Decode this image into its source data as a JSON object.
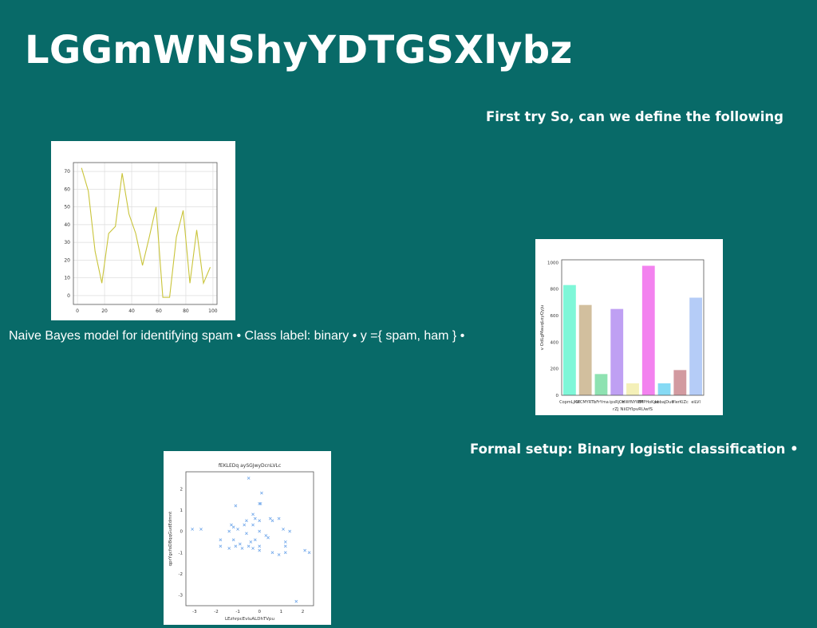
{
  "slide": {
    "title": "LGGmWNShyYDTGSXlybz",
    "caption_top": "First try So, can we define the following",
    "caption_bottom": "Formal setup: Binary logistic classification •",
    "body_text": "Naive Bayes model for identifying spam • Class label: binary • y ={ spam, ham } •"
  },
  "chart_data": [
    {
      "type": "line",
      "title": "",
      "xlabel": "",
      "ylabel": "",
      "x": [
        3,
        8,
        13,
        18,
        23,
        28,
        33,
        38,
        43,
        48,
        53,
        58,
        63,
        68,
        73,
        78,
        83,
        88,
        93,
        98
      ],
      "series": [
        {
          "values": [
            72,
            59,
            25,
            7,
            35,
            39,
            69,
            46,
            35,
            17,
            33,
            50,
            -1,
            -1,
            33,
            48,
            7,
            37,
            7,
            16
          ]
        }
      ],
      "xlim": [
        -3,
        103
      ],
      "ylim": [
        -5,
        75
      ],
      "xticks": [
        0,
        20,
        40,
        60,
        80,
        100
      ],
      "yticks": [
        0,
        10,
        20,
        30,
        40,
        50,
        60,
        70
      ],
      "grid": true,
      "colors": [
        "#c9c43a"
      ]
    },
    {
      "type": "bar",
      "title": "",
      "xlabel": "rZj NiiDYIpvRUwfS",
      "ylabel": "v OdLgMauqLoyQyju",
      "categories": [
        "CopmLjKX",
        "WCMYRTI",
        "bFrYma",
        "ipsRjOs",
        "HWfNYWM",
        "BPPHoKpe",
        "kbbajDud",
        "VlerKiZc",
        "eiLVl"
      ],
      "values": [
        830,
        680,
        160,
        650,
        90,
        975,
        90,
        190,
        735
      ],
      "ylim": [
        0,
        1020
      ],
      "yticks": [
        0,
        200,
        400,
        600,
        800,
        1000
      ],
      "grid": false,
      "colors": [
        "#7ef7d8",
        "#d2bf9e",
        "#8ee2b1",
        "#bfa0f3",
        "#f4f0b8",
        "#f382ef",
        "#86daf4",
        "#d29aa0",
        "#b5ccf7"
      ]
    },
    {
      "type": "scatter",
      "title": "fEKLEDq aySGJwyDcnLVLc",
      "xlabel": "LEzhrpcEvluALDhTVpu",
      "ylabel": "qprYgcfoDBqqGudEdmnt",
      "xlim": [
        -3.4,
        2.5
      ],
      "ylim": [
        -3.5,
        2.8
      ],
      "xticks": [
        -3,
        -2,
        -1,
        0,
        1,
        2
      ],
      "yticks": [
        -3,
        -2,
        -1,
        0,
        1,
        2
      ],
      "grid": false,
      "colors": [
        "#6fa6ea"
      ],
      "points": [
        [
          -0.5,
          2.5
        ],
        [
          0.1,
          1.8
        ],
        [
          0.0,
          1.3
        ],
        [
          0.05,
          1.3
        ],
        [
          -1.1,
          1.2
        ],
        [
          -0.3,
          0.8
        ],
        [
          -0.2,
          0.6
        ],
        [
          0.5,
          0.6
        ],
        [
          0.9,
          0.6
        ],
        [
          0.6,
          0.5
        ],
        [
          -0.6,
          0.5
        ],
        [
          0.0,
          0.5
        ],
        [
          -1.3,
          0.3
        ],
        [
          -0.7,
          0.3
        ],
        [
          -1.2,
          0.2
        ],
        [
          -0.3,
          0.3
        ],
        [
          -1.0,
          0.1
        ],
        [
          1.1,
          0.1
        ],
        [
          -1.4,
          0.0
        ],
        [
          0.0,
          0.0
        ],
        [
          -0.6,
          -0.1
        ],
        [
          0.3,
          -0.2
        ],
        [
          1.4,
          0.0
        ],
        [
          -3.1,
          0.1
        ],
        [
          -2.7,
          0.1
        ],
        [
          -0.4,
          -0.5
        ],
        [
          0.4,
          -0.3
        ],
        [
          -0.2,
          -0.4
        ],
        [
          -1.2,
          -0.4
        ],
        [
          -1.8,
          -0.4
        ],
        [
          -0.9,
          -0.6
        ],
        [
          -0.5,
          -0.7
        ],
        [
          0.0,
          -0.7
        ],
        [
          -1.1,
          -0.7
        ],
        [
          -1.8,
          -0.7
        ],
        [
          -1.4,
          -0.8
        ],
        [
          -0.8,
          -0.8
        ],
        [
          -0.3,
          -0.8
        ],
        [
          1.2,
          -0.5
        ],
        [
          1.2,
          -0.7
        ],
        [
          0.0,
          -0.9
        ],
        [
          0.6,
          -1.0
        ],
        [
          0.9,
          -1.1
        ],
        [
          1.2,
          -1.0
        ],
        [
          2.1,
          -0.9
        ],
        [
          2.3,
          -1.0
        ],
        [
          1.7,
          -3.3
        ]
      ]
    }
  ]
}
